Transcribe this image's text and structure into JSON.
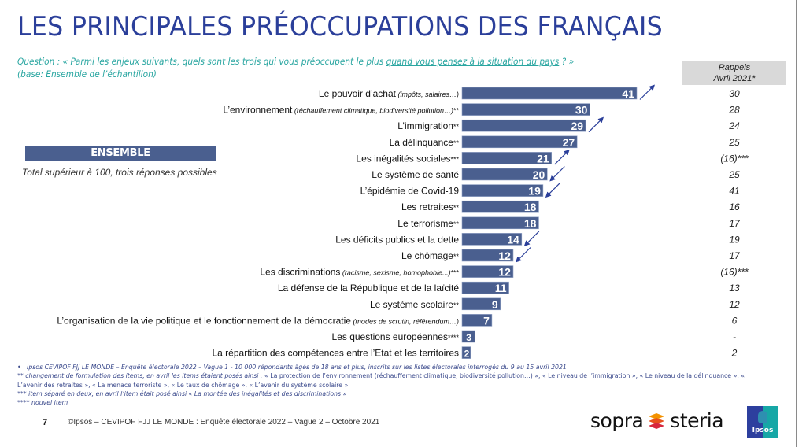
{
  "title": "LES PRINCIPALES PRÉOCCUPATIONS DES FRANÇAIS",
  "question": {
    "prefix": "Question : « Parmi les enjeux suivants, quels sont les trois qui vous préoccupent le plus ",
    "underlined": "quand vous pensez à la situation du pays",
    "suffix": " ? »",
    "base": "(base: Ensemble de l’échantillon)"
  },
  "rappels": {
    "line1": "Rappels",
    "line2": "Avril 2021*"
  },
  "ensemble_label": "ENSEMBLE",
  "total_note": "Total supérieur à 100, trois réponses possibles",
  "colors": {
    "bar": "#4a5f8f",
    "arrow": "#2b3f9a",
    "title": "#2b3f9a",
    "question": "#2aa6a1"
  },
  "chart_data": {
    "type": "bar",
    "orientation": "horizontal",
    "title": "LES PRINCIPALES PRÉOCCUPATIONS DES FRANÇAIS",
    "xlabel": "",
    "ylabel": "",
    "xlim": [
      0,
      41
    ],
    "grid": false,
    "categories": [
      {
        "label": "Le pouvoir d’achat",
        "detail": "(impôts, salaires…)",
        "suffix": ""
      },
      {
        "label": "L’environnement",
        "detail": "(réchauffement climatique, biodiversité pollution…)",
        "suffix": "**"
      },
      {
        "label": "L’immigration",
        "detail": "",
        "suffix": "**"
      },
      {
        "label": "La délinquance",
        "detail": "",
        "suffix": "**"
      },
      {
        "label": "Les inégalités sociales",
        "detail": "",
        "suffix": "***"
      },
      {
        "label": "Le système de santé",
        "detail": "",
        "suffix": ""
      },
      {
        "label": "L’épidémie de Covid-19",
        "detail": "",
        "suffix": ""
      },
      {
        "label": "Les retraites",
        "detail": "",
        "suffix": "**"
      },
      {
        "label": "Le terrorisme",
        "detail": "",
        "suffix": "**"
      },
      {
        "label": "Les déficits publics et la dette",
        "detail": "",
        "suffix": ""
      },
      {
        "label": "Le chômage",
        "detail": "",
        "suffix": "**"
      },
      {
        "label": "Les discriminations",
        "detail": "(racisme, sexisme, homophobie...)",
        "suffix": "***"
      },
      {
        "label": "La défense de la République et de la laïcité",
        "detail": "",
        "suffix": ""
      },
      {
        "label": "Le système scolaire",
        "detail": "",
        "suffix": "**"
      },
      {
        "label": "L’organisation de la vie politique et le fonctionnement de la démocratie",
        "detail": "(modes de scrutin, référendum…)",
        "suffix": ""
      },
      {
        "label": "Les questions européennes",
        "detail": "",
        "suffix": "****"
      },
      {
        "label": "La répartition des compétences entre l’Etat et les territoires",
        "detail": "",
        "suffix": ""
      }
    ],
    "series": [
      {
        "name": "Octobre 2021",
        "values": [
          41,
          30,
          29,
          27,
          21,
          20,
          19,
          18,
          18,
          14,
          12,
          12,
          11,
          9,
          7,
          3,
          2
        ]
      }
    ],
    "rappels_avril_2021": [
      "30",
      "28",
      "24",
      "25",
      "(16)***",
      "25",
      "41",
      "16",
      "17",
      "19",
      "17",
      "(16)***",
      "13",
      "12",
      "6",
      "-",
      "2"
    ],
    "trend_arrows": [
      "up",
      "none",
      "up",
      "none",
      "up",
      "down",
      "down",
      "none",
      "none",
      "down",
      "down",
      "none",
      "none",
      "none",
      "none",
      "none",
      "none"
    ]
  },
  "footnotes": [
    {
      "marker": "•",
      "text": "Ipsos CEVIPOF FJJ LE MONDE – Enquête électorale 2022 – Vague 1 - 10 000 répondants âgés de 18 ans et plus, inscrits sur les listes électorales interrogés du 9 au 15 avril 2021"
    },
    {
      "marker": "**",
      "text": "changement de formulation des items, en avril les items étaient posés ainsi : ",
      "plain": "« La protection de l’environnement (réchauffement climatique, biodiversité pollution…) », « Le niveau de l’immigration »,  « Le niveau de la délinquance », « L’avenir des retraites », « La menace terroriste », « Le taux de chômage », « L’avenir du système scolaire »"
    },
    {
      "marker": "***",
      "text": "item séparé en deux, en avril l’item était posé ainsi « La montée des inégalités et des discriminations »"
    },
    {
      "marker": "****",
      "text": "nouvel item"
    }
  ],
  "footer": {
    "page_number": "7",
    "copyright": "©Ipsos – CEVIPOF FJJ LE MONDE : Enquête électorale 2022 – Vague 2 – Octobre 2021",
    "sopra_left": "sopra",
    "sopra_right": "steria",
    "ipsos_logo": "Ipsos"
  }
}
